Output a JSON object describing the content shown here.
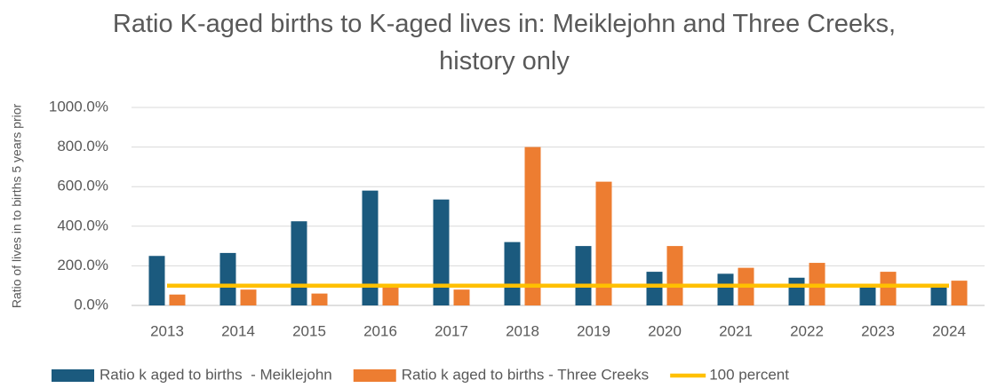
{
  "chart_data": {
    "type": "bar",
    "title": "Ratio K-aged births to K-aged lives in: Meiklejohn and Three Creeks, history only",
    "y_label": "Ratio of lives in to births 5 years prior",
    "categories": [
      "2013",
      "2014",
      "2015",
      "2016",
      "2017",
      "2018",
      "2019",
      "2020",
      "2021",
      "2022",
      "2023",
      "2024"
    ],
    "series": [
      {
        "name": "Ratio k aged to births  - Meiklejohn",
        "color": "#1b5a7e",
        "type": "bar",
        "values": [
          250,
          265,
          425,
          580,
          535,
          320,
          300,
          170,
          160,
          140,
          100,
          100
        ]
      },
      {
        "name": "Ratio k aged to births - Three Creeks",
        "color": "#ed7d31",
        "type": "bar",
        "values": [
          55,
          80,
          60,
          95,
          80,
          800,
          625,
          300,
          190,
          215,
          170,
          125
        ]
      },
      {
        "name": "100 percent",
        "color": "#ffc000",
        "type": "line",
        "values": [
          100,
          100,
          100,
          100,
          100,
          100,
          100,
          100,
          100,
          100,
          100,
          100
        ]
      }
    ],
    "ylim": [
      0,
      1000
    ],
    "yticks": [
      {
        "value": 0,
        "label": "0.0%"
      },
      {
        "value": 200,
        "label": "200.0%"
      },
      {
        "value": 400,
        "label": "400.0%"
      },
      {
        "value": 600,
        "label": "600.0%"
      },
      {
        "value": 800,
        "label": "800.0%"
      },
      {
        "value": 1000,
        "label": "1000.0%"
      }
    ],
    "grid": true,
    "legend": "bottom"
  }
}
